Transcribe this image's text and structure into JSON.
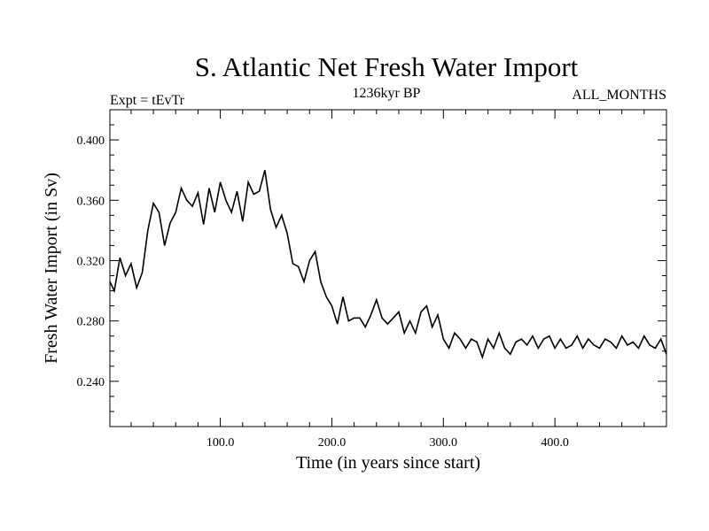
{
  "chart_data": {
    "type": "line",
    "title": "S. Atlantic Net Fresh Water Import",
    "subtitle_left": "Expt = tEvTr",
    "subtitle_center": "1236kyr BP",
    "subtitle_right": "ALL_MONTHS",
    "xlabel": "Time (in years since start)",
    "ylabel": "Fresh Water Import (in Sv)",
    "xlim": [
      1,
      500
    ],
    "ylim": [
      0.21,
      0.42
    ],
    "x_ticks": [
      100,
      200,
      300,
      400
    ],
    "x_tick_labels": [
      "100.0",
      "200.0",
      "300.0",
      "400.0"
    ],
    "y_ticks": [
      0.24,
      0.28,
      0.32,
      0.36,
      0.4
    ],
    "y_tick_labels": [
      "0.240",
      "0.280",
      "0.320",
      "0.360",
      "0.400"
    ],
    "series": [
      {
        "name": "Fresh Water Import",
        "color": "#000000",
        "x": [
          1,
          5,
          10,
          15,
          20,
          25,
          30,
          35,
          40,
          45,
          50,
          55,
          60,
          65,
          70,
          75,
          80,
          85,
          90,
          95,
          100,
          105,
          110,
          115,
          120,
          125,
          130,
          135,
          140,
          145,
          150,
          155,
          160,
          165,
          170,
          175,
          180,
          185,
          190,
          195,
          200,
          205,
          210,
          215,
          220,
          225,
          230,
          235,
          240,
          245,
          250,
          255,
          260,
          265,
          270,
          275,
          280,
          285,
          290,
          295,
          300,
          305,
          310,
          315,
          320,
          325,
          330,
          335,
          340,
          345,
          350,
          355,
          360,
          365,
          370,
          375,
          380,
          385,
          390,
          395,
          400,
          405,
          410,
          415,
          420,
          425,
          430,
          435,
          440,
          445,
          450,
          455,
          460,
          465,
          470,
          475,
          480,
          485,
          490,
          495,
          500
        ],
        "values": [
          0.306,
          0.3,
          0.322,
          0.31,
          0.318,
          0.302,
          0.312,
          0.34,
          0.358,
          0.352,
          0.33,
          0.345,
          0.352,
          0.368,
          0.36,
          0.356,
          0.365,
          0.344,
          0.368,
          0.352,
          0.372,
          0.36,
          0.352,
          0.366,
          0.346,
          0.372,
          0.364,
          0.366,
          0.38,
          0.354,
          0.342,
          0.35,
          0.338,
          0.318,
          0.316,
          0.306,
          0.32,
          0.326,
          0.306,
          0.296,
          0.29,
          0.278,
          0.296,
          0.28,
          0.282,
          0.282,
          0.276,
          0.284,
          0.294,
          0.282,
          0.278,
          0.282,
          0.286,
          0.272,
          0.28,
          0.272,
          0.286,
          0.29,
          0.276,
          0.284,
          0.268,
          0.262,
          0.272,
          0.268,
          0.262,
          0.268,
          0.266,
          0.256,
          0.268,
          0.262,
          0.272,
          0.262,
          0.258,
          0.266,
          0.268,
          0.264,
          0.27,
          0.262,
          0.268,
          0.27,
          0.262,
          0.268,
          0.262,
          0.264,
          0.27,
          0.262,
          0.268,
          0.264,
          0.262,
          0.268,
          0.266,
          0.262,
          0.27,
          0.264,
          0.266,
          0.262,
          0.27,
          0.264,
          0.262,
          0.268,
          0.258
        ]
      }
    ]
  }
}
